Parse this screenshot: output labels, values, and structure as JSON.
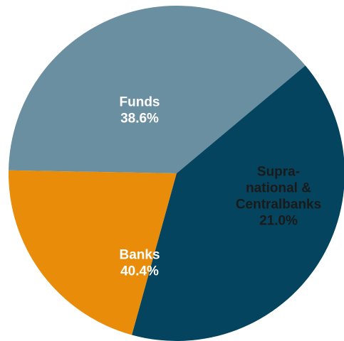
{
  "chart_data": {
    "type": "pie",
    "title": "",
    "legend": "none",
    "slices": [
      {
        "name": "Funds",
        "label_lines": [
          "Funds",
          "38.6%"
        ],
        "value": 38.6,
        "color": "#6a8fa0",
        "label_color": "#ffffff"
      },
      {
        "name": "Supranational & Centralbanks",
        "label_lines": [
          "Supra-",
          "national &",
          "Centralbanks",
          "21.0%"
        ],
        "value": 21.0,
        "color": "#e88c0a",
        "label_color": "#1a1a1a"
      },
      {
        "name": "Banks",
        "label_lines": [
          "Banks",
          "40.4%"
        ],
        "value": 40.4,
        "color": "#04445e",
        "label_color": "#ffffff"
      }
    ]
  }
}
